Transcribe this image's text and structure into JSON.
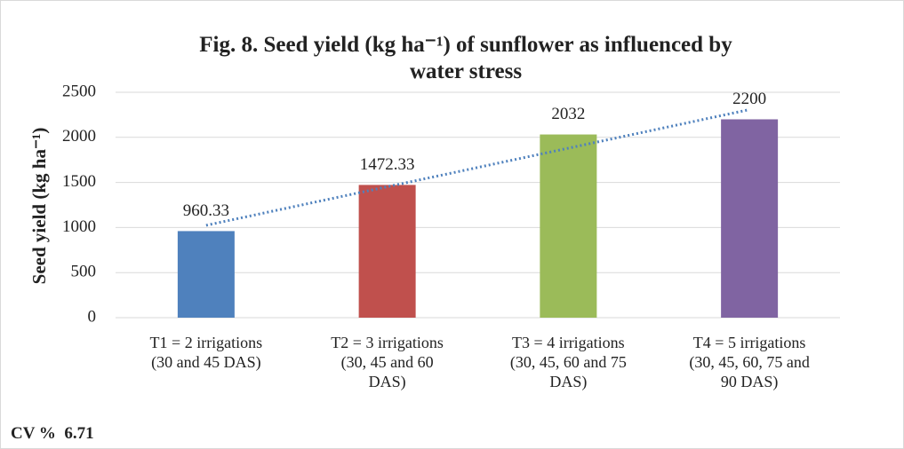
{
  "chart_data": {
    "type": "bar",
    "title": "Fig. 8. Seed yield (kg ha⁻¹) of sunflower as influenced by\nwater stress",
    "y_label": "Seed yield (kg ha⁻¹)",
    "categories": [
      "T1 = 2 irrigations\n(30 and 45 DAS)",
      "T2 = 3 irrigations\n(30, 45 and 60\nDAS)",
      "T3 = 4 irrigations\n(30, 45, 60 and 75\nDAS)",
      "T4 = 5 irrigations\n(30, 45, 60, 75 and\n90 DAS)"
    ],
    "values": [
      960.33,
      1472.33,
      2032,
      2200
    ],
    "colors": [
      "#4f81bd",
      "#c0504d",
      "#9bbb59",
      "#8064a2"
    ],
    "ylim": [
      0,
      2500
    ],
    "yticks": [
      0,
      500,
      1000,
      1500,
      2000,
      2500
    ],
    "grid": true,
    "trendline": "linear",
    "trendline_color": "#4f81bd",
    "note": "CV %  6.71"
  }
}
